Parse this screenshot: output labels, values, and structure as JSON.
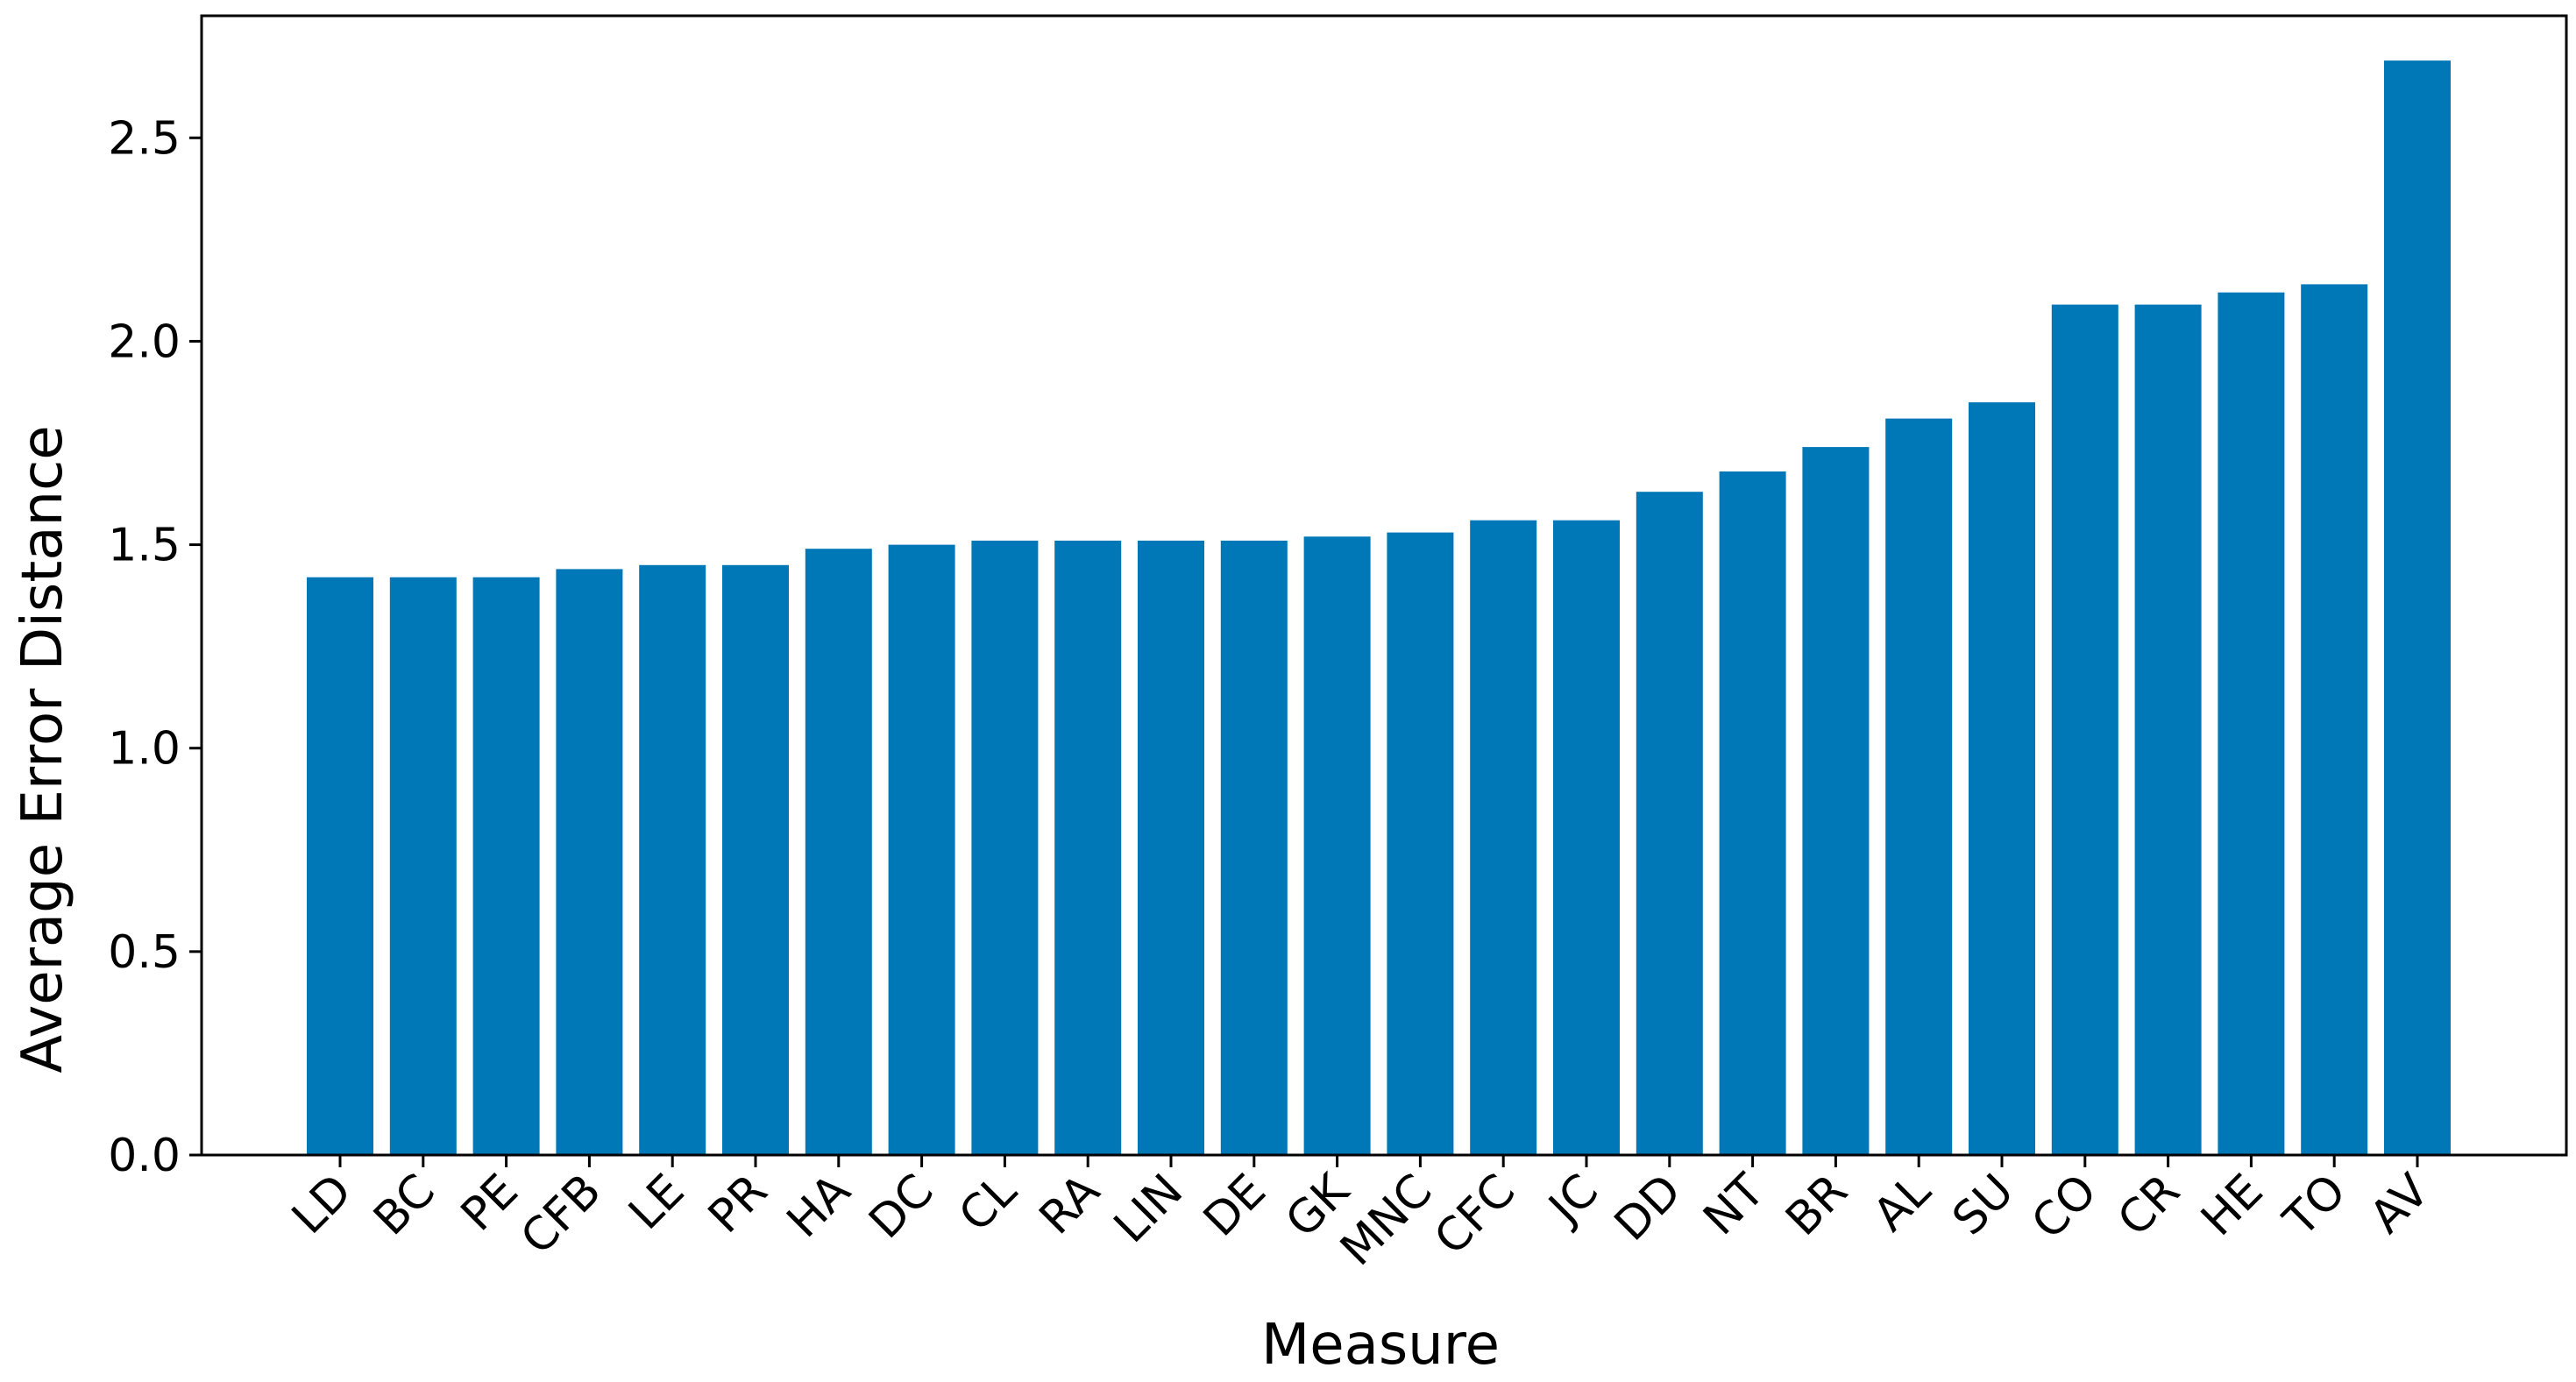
{
  "chart_data": {
    "type": "bar",
    "title": "",
    "xlabel": "Measure",
    "ylabel": "Average Error Distance",
    "categories": [
      "LD",
      "BC",
      "PE",
      "CFB",
      "LE",
      "PR",
      "HA",
      "DC",
      "CL",
      "RA",
      "LIN",
      "DE",
      "GK",
      "MNC",
      "CFC",
      "JC",
      "DD",
      "NT",
      "BR",
      "AL",
      "SU",
      "CO",
      "CR",
      "HE",
      "TO",
      "AV"
    ],
    "values": [
      1.42,
      1.42,
      1.42,
      1.44,
      1.45,
      1.45,
      1.49,
      1.5,
      1.51,
      1.51,
      1.51,
      1.51,
      1.52,
      1.53,
      1.56,
      1.56,
      1.63,
      1.68,
      1.74,
      1.81,
      1.85,
      2.09,
      2.09,
      2.12,
      2.14,
      2.69
    ],
    "ylim": [
      0,
      2.8
    ],
    "yticks": [
      "0.0",
      "0.5",
      "1.0",
      "1.5",
      "2.0",
      "2.5"
    ],
    "ytick_values": [
      0,
      0.5,
      1.0,
      1.5,
      2.0,
      2.5
    ],
    "xtick_rotation_deg": 45,
    "grid": false,
    "bar_color": "#0077b6",
    "axis_color": "#000000"
  }
}
